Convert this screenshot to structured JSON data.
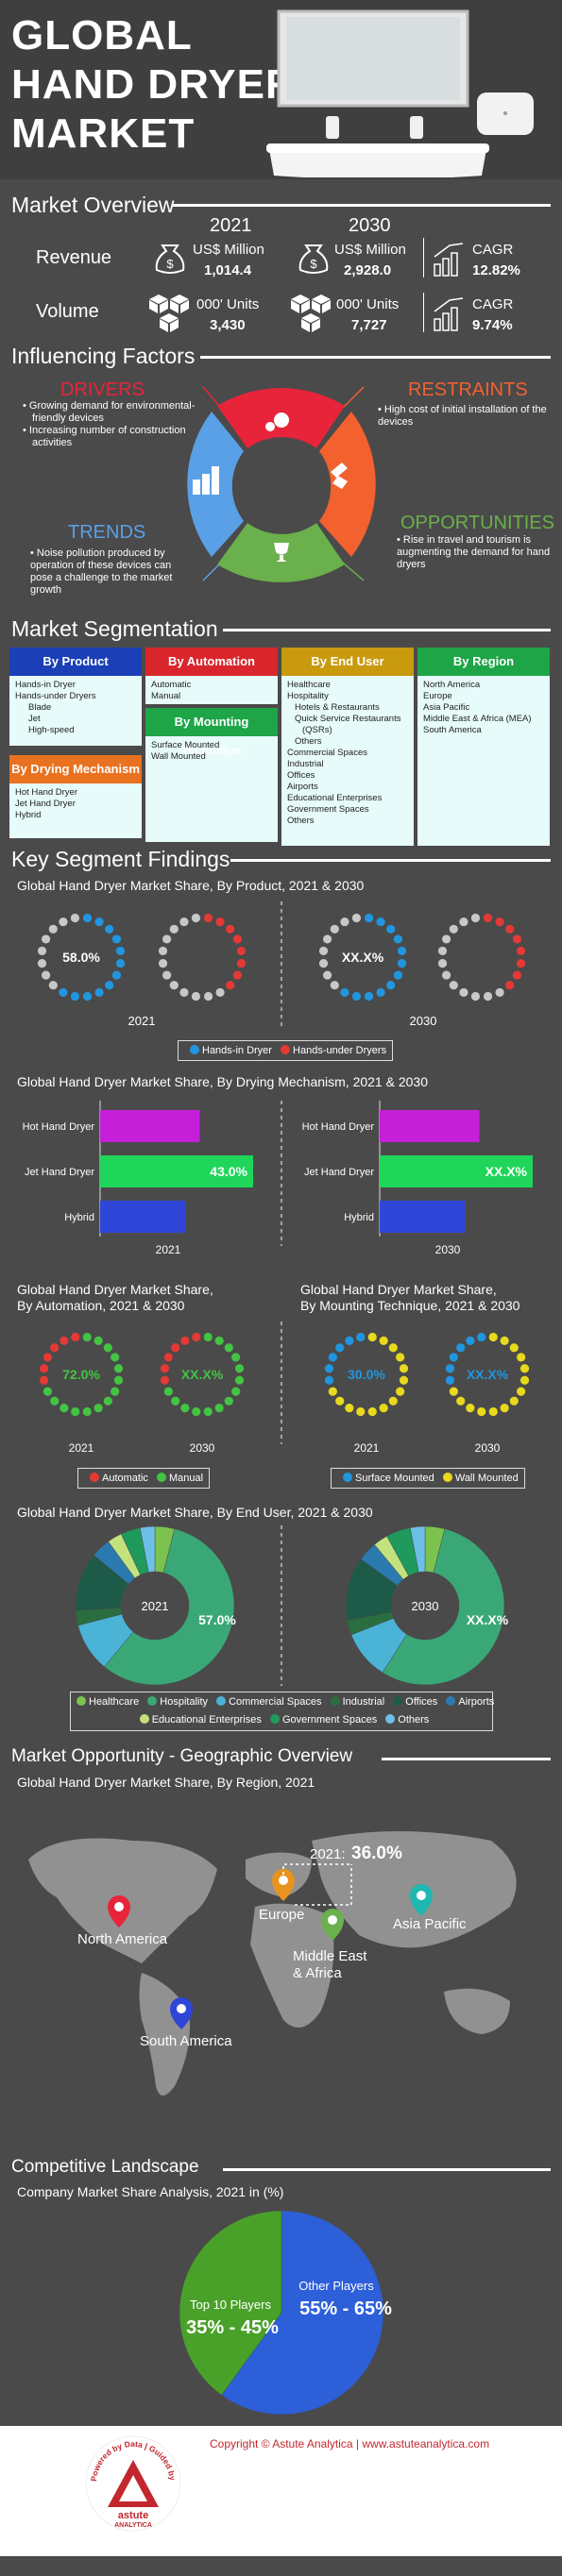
{
  "hero": {
    "title_line1": "GLOBAL",
    "title_line2": "HAND DRYER",
    "title_line3": "MARKET"
  },
  "overview": {
    "title": "Market Overview",
    "year1": "2021",
    "year2": "2030",
    "revenue_label": "Revenue",
    "volume_label": "Volume",
    "revenue_unit": "US$ Million",
    "volume_unit": "000' Units",
    "revenue_2021": "1,014.4",
    "revenue_2030": "2,928.0",
    "volume_2021": "3,430",
    "volume_2030": "7,727",
    "cagr_label": "CAGR",
    "revenue_cagr": "12.82%",
    "volume_cagr": "9.74%"
  },
  "factors": {
    "title": "Influencing Factors",
    "drivers": {
      "label": "DRIVERS",
      "items": [
        "Growing demand for environmental-friendly devices",
        "Increasing number of construction activities"
      ]
    },
    "restraints": {
      "label": "RESTRAINTS",
      "items": [
        "High cost of initial installation of the devices"
      ]
    },
    "trends": {
      "label": "TRENDS",
      "items": [
        "Noise pollution produced by operation of these devices can pose a challenge to the market growth"
      ]
    },
    "opportunities": {
      "label": "OPPORTUNITIES",
      "items": [
        "Rise in travel and tourism is augmenting the demand for hand dryers"
      ]
    }
  },
  "segmentation": {
    "title": "Market Segmentation",
    "by_product": {
      "label": "By Product",
      "items": [
        "Hands-in Dryer",
        "Hands-under Dryers",
        "Blade",
        "Jet",
        "High-speed"
      ]
    },
    "by_drying": {
      "label": "By Drying Mechanism",
      "items": [
        "Hot Hand Dryer",
        "Jet Hand Dryer",
        "Hybrid"
      ]
    },
    "by_automation": {
      "label": "By Automation",
      "items": [
        "Automatic",
        "Manual"
      ]
    },
    "by_mounting": {
      "label": "By Mounting Technique",
      "items": [
        "Surface Mounted",
        "Wall Mounted"
      ]
    },
    "by_end_user": {
      "label": "By End User",
      "items": [
        "Healthcare",
        "Hospitality",
        "Hotels & Restaurants",
        "Quick Service Restaurants",
        "(QSRs)",
        "Others",
        "Commercial Spaces",
        "Industrial",
        "Offices",
        "Airports",
        "Educational Enterprises",
        "Government Spaces",
        "Others"
      ]
    },
    "by_region": {
      "label": "By Region",
      "items": [
        "North America",
        "Europe",
        "Asia Pacific",
        "Middle East & Africa (MEA)",
        "South America"
      ]
    }
  },
  "findings": {
    "title": "Key Segment Findings",
    "product_title": "Global Hand Dryer Market Share, By Product, 2021 & 2030",
    "drying_title": "Global Hand Dryer Market Share, By Drying Mechanism, 2021 & 2030",
    "automation_title_1": "Global Hand Dryer Market Share,",
    "automation_title_2": "By Automation, 2021 & 2030",
    "mounting_title_1": "Global Hand Dryer Market Share,",
    "mounting_title_2": "By Mounting Technique, 2021 & 2030",
    "enduser_title": "Global Hand Dryer Market Share, By End User, 2021 & 2030"
  },
  "geo": {
    "title": "Market Opportunity - Geographic Overview",
    "subtitle": "Global Hand Dryer Market Share, By Region, 2021",
    "highlight_year": "2021:",
    "highlight_value": "36.0%",
    "regions": [
      "North America",
      "Europe",
      "Middle East",
      "& Africa",
      "Asia Pacific",
      "South America"
    ]
  },
  "competitive": {
    "title": "Competitive Landscape",
    "subtitle": "Company Market Share Analysis, 2021 in (%)"
  },
  "footer": {
    "copyright": "Copyright © Astute Analytica | www.astuteanalytica.com",
    "logo_ring": "Powered by Data | Guided by Intelligence",
    "logo_name": "astute",
    "logo_name2": "ANALYTICA"
  },
  "chart_data": [
    {
      "type": "donut-dots",
      "title": "Global Hand Dryer Market Share, By Product, 2021 & 2030",
      "categories": [
        "2021",
        "2030"
      ],
      "series": [
        {
          "name": "Hands-in Dryer",
          "color": "#2196e0",
          "values": [
            58.0,
            null
          ]
        },
        {
          "name": "Hands-under Dryers",
          "color": "#e53935",
          "values": [
            null,
            null
          ]
        }
      ],
      "labels": [
        "58.0%",
        "XX.X%"
      ]
    },
    {
      "type": "bar",
      "title": "Global Hand Dryer Market Share, By Drying Mechanism, 2021 & 2030",
      "categories": [
        "Hot Hand Dryer",
        "Jet Hand Dryer",
        "Hybrid"
      ],
      "colors": [
        "#c51fd8",
        "#1fd65a",
        "#2f46d8"
      ],
      "series": [
        {
          "name": "2021",
          "values": [
            28,
            43.0,
            24
          ]
        },
        {
          "name": "2030",
          "values": [
            28,
            null,
            24
          ]
        }
      ],
      "labels": {
        "2021": "43.0%",
        "2030": "XX.X%"
      },
      "xlim": [
        0,
        43
      ]
    },
    {
      "type": "donut-dots",
      "title": "Global Hand Dryer Market Share, By Automation, 2021 & 2030",
      "categories": [
        "2021",
        "2030"
      ],
      "series": [
        {
          "name": "Automatic",
          "color": "#e53935",
          "values": [
            28.0,
            null
          ]
        },
        {
          "name": "Manual",
          "color": "#43c443",
          "values": [
            72.0,
            null
          ]
        }
      ],
      "labels": [
        "72.0%",
        "XX.X%"
      ]
    },
    {
      "type": "donut-dots",
      "title": "Global Hand Dryer Market Share, By Mounting Technique, 2021 & 2030",
      "categories": [
        "2021",
        "2030"
      ],
      "series": [
        {
          "name": "Surface Mounted",
          "color": "#2196e0",
          "values": [
            30.0,
            null
          ]
        },
        {
          "name": "Wall Mounted",
          "color": "#e8d91d",
          "values": [
            70.0,
            null
          ]
        }
      ],
      "labels": [
        "30.0%",
        "XX.X%"
      ]
    },
    {
      "type": "pie",
      "title": "Global Hand Dryer Market Share, By End User, 2021 & 2030",
      "categories": [
        "Healthcare",
        "Hospitality",
        "Commercial Spaces",
        "Industrial",
        "Offices",
        "Airports",
        "Educational Enterprises",
        "Government Spaces",
        "Others"
      ],
      "colors": [
        "#7cc24e",
        "#3aa876",
        "#4ab3d6",
        "#2a6e3f",
        "#1e5a48",
        "#2a7ab0",
        "#c3e27d",
        "#1f9a5c",
        "#6cc0e6"
      ],
      "series": [
        {
          "name": "2021",
          "values": [
            4,
            57.0,
            10,
            3,
            12,
            4,
            3,
            4,
            3
          ]
        },
        {
          "name": "2030",
          "values": [
            4,
            55,
            10,
            3,
            13,
            4,
            3,
            5,
            3
          ]
        }
      ],
      "labels": [
        "2021",
        "57.0%",
        "2030",
        "XX.X%"
      ]
    },
    {
      "type": "map",
      "title": "Global Hand Dryer Market Share, By Region, 2021",
      "categories": [
        "North America",
        "Europe",
        "Middle East & Africa",
        "Asia Pacific",
        "South America"
      ],
      "highlight": {
        "region": "Europe",
        "year": "2021",
        "value": 36.0
      }
    },
    {
      "type": "pie",
      "title": "Company Market Share Analysis, 2021 in (%)",
      "categories": [
        "Other Players",
        "Top 10 Players"
      ],
      "colors": [
        "#2d5fd8",
        "#4aa12a"
      ],
      "values": [
        60,
        40
      ],
      "labels": [
        "55% - 65%",
        "35% - 45%"
      ]
    }
  ],
  "legends": {
    "product": [
      "Hands-in Dryer",
      "Hands-under Dryers"
    ],
    "automation": [
      "Automatic",
      "Manual"
    ],
    "mounting": [
      "Surface Mounted",
      "Wall Mounted"
    ],
    "enduser": [
      "Healthcare",
      "Hospitality",
      "Commercial Spaces",
      "Industrial",
      "Offices",
      "Airports",
      "Educational Enterprises",
      "Government Spaces",
      "Others"
    ],
    "competitive": [
      "Other Players",
      "Top 10 Players"
    ]
  },
  "colors": {
    "background": "#4a4a4a",
    "drivers": "#e8243a",
    "restraints": "#f3612f",
    "trends": "#5aa0e6",
    "opportunities": "#6ab04c",
    "seg_blue": "#1a3fb7",
    "seg_red": "#d9262c",
    "seg_orange": "#e8721f",
    "seg_gold": "#c99a0e",
    "seg_green": "#1ea548",
    "seg_teal": "#1eb8b0"
  }
}
